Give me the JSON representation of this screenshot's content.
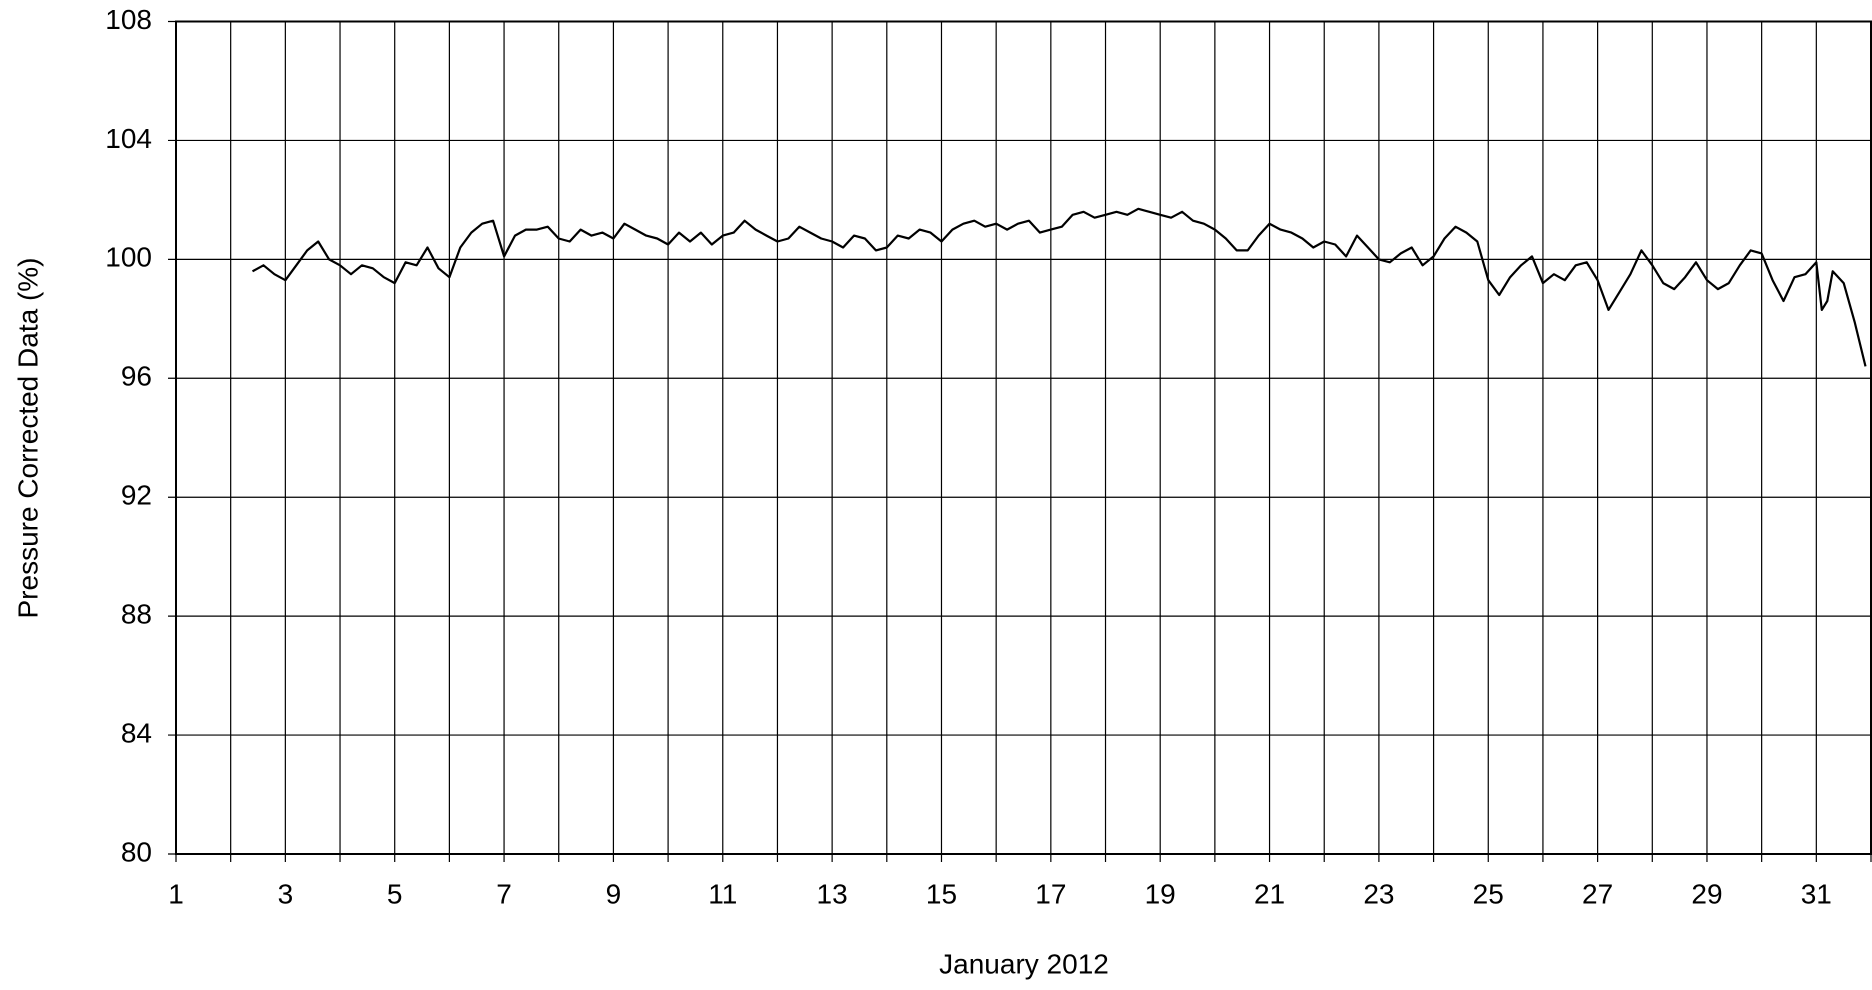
{
  "chart_data": {
    "type": "line",
    "xlabel": "January 2012",
    "ylabel": "Pressure Corrected Data (%)",
    "color": "#000000",
    "grid": true,
    "xlim": [
      1,
      32
    ],
    "xticks": [
      1,
      3,
      5,
      7,
      9,
      11,
      13,
      15,
      17,
      19,
      21,
      23,
      25,
      27,
      29,
      31
    ],
    "xminor": [
      2,
      4,
      6,
      8,
      10,
      12,
      14,
      16,
      18,
      20,
      22,
      24,
      26,
      28,
      30,
      32
    ],
    "ylim": [
      80,
      108
    ],
    "yticks": [
      80,
      84,
      88,
      92,
      96,
      100,
      104,
      108
    ],
    "x": [
      2.4,
      2.6,
      2.8,
      3.0,
      3.2,
      3.4,
      3.6,
      3.8,
      4.0,
      4.2,
      4.4,
      4.6,
      4.8,
      5.0,
      5.2,
      5.4,
      5.6,
      5.8,
      6.0,
      6.2,
      6.4,
      6.6,
      6.8,
      7.0,
      7.2,
      7.4,
      7.6,
      7.8,
      8.0,
      8.2,
      8.4,
      8.6,
      8.8,
      9.0,
      9.2,
      9.4,
      9.6,
      9.8,
      10.0,
      10.2,
      10.4,
      10.6,
      10.8,
      11.0,
      11.2,
      11.4,
      11.6,
      11.8,
      12.0,
      12.2,
      12.4,
      12.6,
      12.8,
      13.0,
      13.2,
      13.4,
      13.6,
      13.8,
      14.0,
      14.2,
      14.4,
      14.6,
      14.8,
      15.0,
      15.2,
      15.4,
      15.6,
      15.8,
      16.0,
      16.2,
      16.4,
      16.6,
      16.8,
      17.0,
      17.2,
      17.4,
      17.6,
      17.8,
      18.0,
      18.2,
      18.4,
      18.6,
      18.8,
      19.0,
      19.2,
      19.4,
      19.6,
      19.8,
      20.0,
      20.2,
      20.4,
      20.6,
      20.8,
      21.0,
      21.2,
      21.4,
      21.6,
      21.8,
      22.0,
      22.2,
      22.4,
      22.6,
      22.8,
      23.0,
      23.2,
      23.4,
      23.6,
      23.8,
      24.0,
      24.2,
      24.4,
      24.6,
      24.8,
      25.0,
      25.2,
      25.4,
      25.6,
      25.8,
      26.0,
      26.2,
      26.4,
      26.6,
      26.8,
      27.0,
      27.2,
      27.4,
      27.6,
      27.8,
      28.0,
      28.2,
      28.4,
      28.6,
      28.8,
      29.0,
      29.2,
      29.4,
      29.6,
      29.8,
      30.0,
      30.2,
      30.4,
      30.6,
      30.8,
      31.0,
      31.1,
      31.2,
      31.3,
      31.5,
      31.7,
      31.9
    ],
    "values": [
      99.6,
      99.8,
      99.5,
      99.3,
      99.8,
      100.3,
      100.6,
      100.0,
      99.8,
      99.5,
      99.8,
      99.7,
      99.4,
      99.2,
      99.9,
      99.8,
      100.4,
      99.7,
      99.4,
      100.4,
      100.9,
      101.2,
      101.3,
      100.1,
      100.8,
      101.0,
      101.0,
      101.1,
      100.7,
      100.6,
      101.0,
      100.8,
      100.9,
      100.7,
      101.2,
      101.0,
      100.8,
      100.7,
      100.5,
      100.9,
      100.6,
      100.9,
      100.5,
      100.8,
      100.9,
      101.3,
      101.0,
      100.8,
      100.6,
      100.7,
      101.1,
      100.9,
      100.7,
      100.6,
      100.4,
      100.8,
      100.7,
      100.3,
      100.4,
      100.8,
      100.7,
      101.0,
      100.9,
      100.6,
      101.0,
      101.2,
      101.3,
      101.1,
      101.2,
      101.0,
      101.2,
      101.3,
      100.9,
      101.0,
      101.1,
      101.5,
      101.6,
      101.4,
      101.5,
      101.6,
      101.5,
      101.7,
      101.6,
      101.5,
      101.4,
      101.6,
      101.3,
      101.2,
      101.0,
      100.7,
      100.3,
      100.3,
      100.8,
      101.2,
      101.0,
      100.9,
      100.7,
      100.4,
      100.6,
      100.5,
      100.1,
      100.8,
      100.4,
      100.0,
      99.9,
      100.2,
      100.4,
      99.8,
      100.1,
      100.7,
      101.1,
      100.9,
      100.6,
      99.3,
      98.8,
      99.4,
      99.8,
      100.1,
      99.2,
      99.5,
      99.3,
      99.8,
      99.9,
      99.3,
      98.3,
      98.9,
      99.5,
      100.3,
      99.8,
      99.2,
      99.0,
      99.4,
      99.9,
      99.3,
      99.0,
      99.2,
      99.8,
      100.3,
      100.2,
      99.3,
      98.6,
      99.4,
      99.5,
      99.9,
      98.3,
      98.6,
      99.6,
      99.2,
      97.9,
      96.4
    ]
  }
}
